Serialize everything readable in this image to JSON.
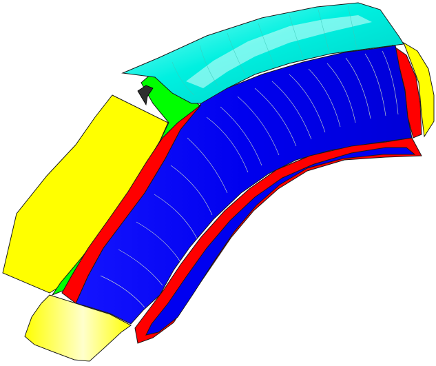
{
  "scene": {
    "background": "#ffffff",
    "colors": {
      "cyan": "#00f0e0",
      "cyan_light": "#7ffff4",
      "blue": "#0000f0",
      "red": "#ff0000",
      "yellow": "#ffff00",
      "green": "#00ff00",
      "edge": "#1a1a1a",
      "isoline": "#d8e8c8"
    },
    "surfaces": [
      "yellow-flange-surface",
      "green-fillet-surface",
      "cyan-top-surface",
      "blue-main-surface",
      "red-side-strip",
      "yellow-toe-surface",
      "dark-notch"
    ]
  }
}
